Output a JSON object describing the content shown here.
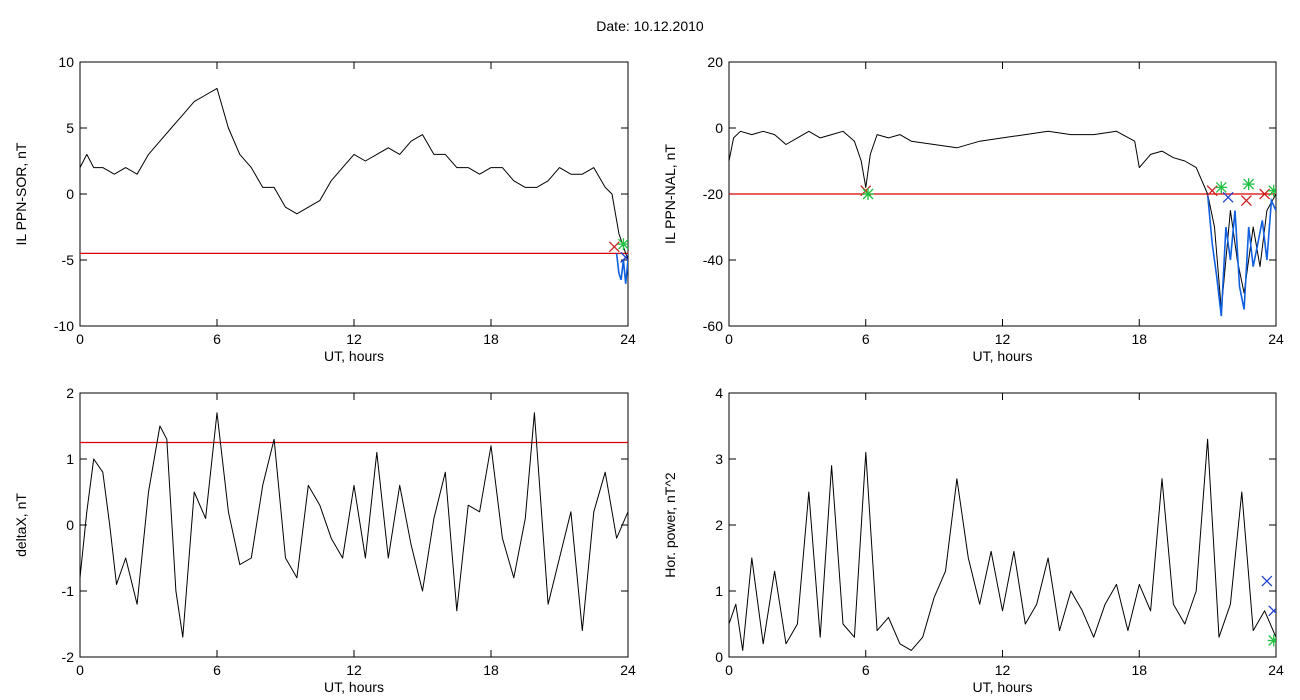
{
  "figure": {
    "title": "Date:  10.12.2010"
  },
  "colors": {
    "trace": "#000000",
    "threshold": "#dd0000",
    "highlight": "#1060e0",
    "marker_red": "#cc2020",
    "marker_green": "#20c040",
    "marker_blue": "#2040d0"
  },
  "chart_data": [
    {
      "type": "line",
      "title": "",
      "xlabel": "UT, hours",
      "ylabel": "IL PPN-SOR, nT",
      "xlim": [
        0,
        24
      ],
      "ylim": [
        -10,
        10
      ],
      "xticks": [
        0,
        6,
        12,
        18,
        24
      ],
      "yticks": [
        -10,
        -5,
        0,
        5,
        10
      ],
      "ytick_labels": [
        "-10",
        "-5",
        "0",
        "5",
        "10"
      ],
      "grid": false,
      "threshold": -4.5,
      "series": [
        {
          "x": [
            0,
            0.3,
            0.6,
            1,
            1.5,
            2,
            2.5,
            3,
            3.5,
            4,
            4.5,
            5,
            5.5,
            6,
            6.5,
            7,
            7.5,
            8,
            8.5,
            9,
            9.5,
            10,
            10.5,
            11,
            11.5,
            12,
            12.5,
            13,
            13.5,
            14,
            14.5,
            15,
            15.5,
            16,
            16.5,
            17,
            17.5,
            18,
            18.5,
            19,
            19.5,
            20,
            20.5,
            21,
            21.5,
            22,
            22.5,
            23,
            23.3,
            23.6,
            23.8,
            24
          ],
          "y": [
            2,
            3,
            2,
            2,
            1.5,
            2,
            1.5,
            3,
            4,
            5,
            6,
            7,
            7.5,
            8,
            5,
            3,
            2,
            0.5,
            0.5,
            -1,
            -1.5,
            -1,
            -0.5,
            1,
            2,
            3,
            2.5,
            3,
            3.5,
            3,
            4,
            4.5,
            3,
            3,
            2,
            2,
            1.5,
            2,
            2,
            1,
            0.5,
            0.5,
            1,
            2,
            1.5,
            1.5,
            2,
            0.5,
            0,
            -3,
            -4,
            -5
          ]
        }
      ],
      "exceed_segment": {
        "x": [
          23.5,
          23.6,
          23.7,
          23.8,
          23.9,
          24
        ],
        "y": [
          -4.5,
          -6,
          -6.5,
          -5,
          -6.8,
          -5
        ]
      },
      "markers": [
        {
          "x": 23.4,
          "y": -4,
          "symbol": "x",
          "color": "red"
        },
        {
          "x": 23.8,
          "y": -3.8,
          "symbol": "*",
          "color": "green"
        },
        {
          "x": 23.9,
          "y": -4.8,
          "symbol": "x",
          "color": "blue"
        }
      ]
    },
    {
      "type": "line",
      "title": "",
      "xlabel": "UT, hours",
      "ylabel": "IL PPN-NAL, nT",
      "xlim": [
        0,
        24
      ],
      "ylim": [
        -60,
        20
      ],
      "xticks": [
        0,
        6,
        12,
        18,
        24
      ],
      "yticks": [
        -60,
        -40,
        -20,
        0,
        20
      ],
      "ytick_labels": [
        "-60",
        "-40",
        "-20",
        "0",
        "20"
      ],
      "grid": false,
      "threshold": -20,
      "series": [
        {
          "x": [
            0,
            0.2,
            0.5,
            1,
            1.5,
            2,
            2.5,
            3,
            3.5,
            4,
            4.5,
            5,
            5.5,
            5.8,
            6,
            6.2,
            6.5,
            7,
            7.5,
            8,
            9,
            10,
            11,
            12,
            13,
            14,
            15,
            16,
            17,
            17.8,
            18,
            18.5,
            19,
            19.5,
            20,
            20.5,
            21,
            21.3,
            21.6,
            22,
            22.3,
            22.6,
            23,
            23.3,
            23.6,
            24
          ],
          "y": [
            -10,
            -3,
            -1,
            -2,
            -1,
            -2,
            -5,
            -3,
            -1,
            -3,
            -2,
            -1,
            -4,
            -10,
            -18,
            -8,
            -2,
            -3,
            -2,
            -4,
            -5,
            -6,
            -4,
            -3,
            -2,
            -1,
            -2,
            -2,
            -1,
            -4,
            -12,
            -8,
            -7,
            -9,
            -10,
            -12,
            -20,
            -30,
            -55,
            -25,
            -40,
            -50,
            -30,
            -42,
            -25,
            -20
          ]
        }
      ],
      "exceed_segment": {
        "x": [
          21,
          21.2,
          21.4,
          21.6,
          21.8,
          22,
          22.2,
          22.4,
          22.6,
          22.8,
          23,
          23.2,
          23.4,
          23.6,
          23.8,
          24
        ],
        "y": [
          -20,
          -35,
          -45,
          -57,
          -30,
          -40,
          -25,
          -48,
          -55,
          -30,
          -42,
          -35,
          -28,
          -40,
          -22,
          -25
        ]
      },
      "markers": [
        {
          "x": 6,
          "y": -19,
          "symbol": "x",
          "color": "red"
        },
        {
          "x": 6.1,
          "y": -20,
          "symbol": "*",
          "color": "green"
        },
        {
          "x": 21.2,
          "y": -19,
          "symbol": "x",
          "color": "red"
        },
        {
          "x": 21.6,
          "y": -18,
          "symbol": "*",
          "color": "green"
        },
        {
          "x": 21.9,
          "y": -21,
          "symbol": "x",
          "color": "blue"
        },
        {
          "x": 22.7,
          "y": -22,
          "symbol": "x",
          "color": "red"
        },
        {
          "x": 22.8,
          "y": -17,
          "symbol": "*",
          "color": "green"
        },
        {
          "x": 23.5,
          "y": -20,
          "symbol": "x",
          "color": "red"
        },
        {
          "x": 23.9,
          "y": -19,
          "symbol": "*",
          "color": "green"
        }
      ]
    },
    {
      "type": "line",
      "title": "",
      "xlabel": "UT, hours",
      "ylabel": "deltaX, nT",
      "xlim": [
        0,
        24
      ],
      "ylim": [
        -2,
        2
      ],
      "xticks": [
        0,
        6,
        12,
        18,
        24
      ],
      "yticks": [
        -2,
        -1,
        0,
        1,
        2
      ],
      "ytick_labels": [
        "-2",
        "-1",
        "0",
        "1",
        "2"
      ],
      "grid": false,
      "threshold": 1.25,
      "series": [
        {
          "x": [
            0,
            0.3,
            0.6,
            1,
            1.3,
            1.6,
            2,
            2.5,
            3,
            3.5,
            3.8,
            4.2,
            4.5,
            5,
            5.5,
            6,
            6.5,
            7,
            7.5,
            8,
            8.5,
            9,
            9.5,
            10,
            10.5,
            11,
            11.5,
            12,
            12.5,
            13,
            13.5,
            14,
            14.5,
            15,
            15.5,
            16,
            16.5,
            17,
            17.5,
            18,
            18.5,
            19,
            19.5,
            19.9,
            20.5,
            21,
            21.5,
            22,
            22.5,
            23,
            23.5,
            24
          ],
          "y": [
            -0.8,
            0.2,
            1,
            0.8,
            0,
            -0.9,
            -0.5,
            -1.2,
            0.5,
            1.5,
            1.3,
            -1,
            -1.7,
            0.5,
            0.1,
            1.7,
            0.2,
            -0.6,
            -0.5,
            0.6,
            1.3,
            -0.5,
            -0.8,
            0.6,
            0.3,
            -0.2,
            -0.5,
            0.6,
            -0.5,
            1.1,
            -0.5,
            0.6,
            -0.3,
            -1,
            0.1,
            0.8,
            -1.3,
            0.3,
            0.2,
            1.2,
            -0.2,
            -0.8,
            0.1,
            1.7,
            -1.2,
            -0.5,
            0.2,
            -1.6,
            0.2,
            0.8,
            -0.2,
            0.2
          ]
        }
      ],
      "exceed_segment": null,
      "markers": []
    },
    {
      "type": "line",
      "title": "",
      "xlabel": "UT, hours",
      "ylabel": "Hor. power, nT^2",
      "xlim": [
        0,
        24
      ],
      "ylim": [
        0,
        4
      ],
      "xticks": [
        0,
        6,
        12,
        18,
        24
      ],
      "yticks": [
        0,
        1,
        2,
        3,
        4
      ],
      "ytick_labels": [
        "0",
        "1",
        "2",
        "3",
        "4"
      ],
      "grid": false,
      "threshold": null,
      "series": [
        {
          "x": [
            0,
            0.3,
            0.6,
            1,
            1.5,
            2,
            2.5,
            3,
            3.5,
            4,
            4.5,
            5,
            5.5,
            6,
            6.5,
            7,
            7.5,
            8,
            8.5,
            9,
            9.5,
            10,
            10.5,
            11,
            11.5,
            12,
            12.5,
            13,
            13.5,
            14,
            14.5,
            15,
            15.5,
            16,
            16.5,
            17,
            17.5,
            18,
            18.5,
            19,
            19.5,
            20,
            20.5,
            21,
            21.5,
            22,
            22.5,
            23,
            23.5,
            24
          ],
          "y": [
            0.5,
            0.8,
            0.1,
            1.5,
            0.2,
            1.3,
            0.2,
            0.5,
            2.5,
            0.3,
            2.9,
            0.5,
            0.3,
            3.1,
            0.4,
            0.6,
            0.2,
            0.1,
            0.3,
            0.9,
            1.3,
            2.7,
            1.5,
            0.8,
            1.6,
            0.7,
            1.6,
            0.5,
            0.8,
            1.5,
            0.4,
            1.0,
            0.7,
            0.3,
            0.8,
            1.1,
            0.4,
            1.1,
            0.7,
            2.7,
            0.8,
            0.5,
            1.0,
            3.3,
            0.3,
            0.8,
            2.5,
            0.4,
            0.7,
            0.3
          ]
        }
      ],
      "exceed_segment": null,
      "markers": [
        {
          "x": 23.6,
          "y": 1.15,
          "symbol": "x",
          "color": "blue"
        },
        {
          "x": 23.9,
          "y": 0.7,
          "symbol": "x",
          "color": "blue"
        },
        {
          "x": 23.9,
          "y": 0.25,
          "symbol": "*",
          "color": "green"
        }
      ]
    }
  ]
}
